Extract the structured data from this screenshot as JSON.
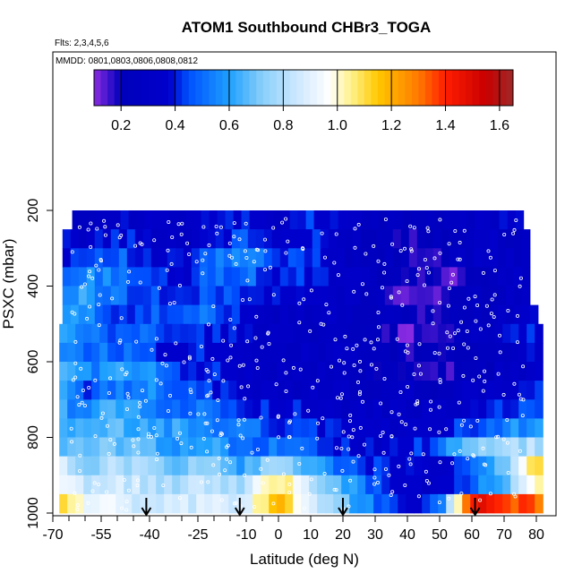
{
  "chart_data": {
    "type": "heatmap",
    "title": "ATOM1 Southbound CHBr3_TOGA",
    "flights_note": "Flts: 2,3,4,5,6",
    "dates_note": "MMDD: 0801,0803,0806,0808,0812",
    "xlabel": "Latitude (deg N)",
    "ylabel": "PSXC (mbar)",
    "xlim": [
      -70,
      80
    ],
    "ylim": [
      1000,
      100
    ],
    "x_ticks": [
      -70,
      -55,
      -40,
      -25,
      -10,
      0,
      10,
      20,
      30,
      40,
      50,
      60,
      70,
      80
    ],
    "x_tick_labels": [
      "-70",
      "-55",
      "-40",
      "-25",
      "-10",
      "0",
      "10",
      "20",
      "30",
      "40",
      "50",
      "60",
      "70",
      "80"
    ],
    "x_minor_ticks": [
      -65,
      -60,
      -50,
      -45,
      -35,
      -30,
      -20,
      -15,
      -5
    ],
    "y_ticks": [
      200,
      400,
      600,
      800,
      1000
    ],
    "y_tick_labels": [
      "200",
      "400",
      "600",
      "800",
      "1000"
    ],
    "colorbar": {
      "range": [
        0.1,
        1.65
      ],
      "ticks": [
        0.2,
        0.4,
        0.6,
        0.8,
        1.0,
        1.2,
        1.4,
        1.6
      ],
      "tick_labels": [
        "0.2",
        "0.4",
        "0.6",
        "0.8",
        "1.0",
        "1.2",
        "1.4",
        "1.6"
      ],
      "stops": [
        {
          "v": 0.1,
          "c": "#8a2be2"
        },
        {
          "v": 0.2,
          "c": "#0000bb"
        },
        {
          "v": 0.38,
          "c": "#0000cd"
        },
        {
          "v": 0.45,
          "c": "#0050ff"
        },
        {
          "v": 0.6,
          "c": "#1ea0ff"
        },
        {
          "v": 0.72,
          "c": "#87cefa"
        },
        {
          "v": 0.85,
          "c": "#cde8ff"
        },
        {
          "v": 0.97,
          "c": "#ffffff"
        },
        {
          "v": 1.05,
          "c": "#fff28c"
        },
        {
          "v": 1.15,
          "c": "#ffc800"
        },
        {
          "v": 1.3,
          "c": "#ff7a00"
        },
        {
          "v": 1.4,
          "c": "#ff1e00"
        },
        {
          "v": 1.55,
          "c": "#c80000"
        },
        {
          "v": 1.65,
          "c": "#a02828"
        }
      ]
    },
    "pressure_levels": [
      225,
      275,
      325,
      375,
      425,
      475,
      525,
      575,
      625,
      675,
      725,
      775,
      825,
      875,
      925,
      975
    ],
    "row_lat_extent": [
      [
        -64,
        75
      ],
      [
        -67,
        76
      ],
      [
        -67,
        77
      ],
      [
        -67,
        77
      ],
      [
        -67,
        78
      ],
      [
        -67,
        79
      ],
      [
        -68,
        80
      ],
      [
        -68,
        80
      ],
      [
        -68,
        80
      ],
      [
        -68,
        80
      ],
      [
        -68,
        80
      ],
      [
        -68,
        80
      ],
      [
        -68,
        80
      ],
      [
        -68,
        80
      ],
      [
        -68,
        80
      ],
      [
        -68,
        80
      ]
    ],
    "lat_nodes": [
      -68,
      -60,
      -50,
      -40,
      -30,
      -20,
      -10,
      0,
      10,
      20,
      30,
      40,
      50,
      60,
      70,
      80
    ],
    "values": [
      [
        0.3,
        0.3,
        0.35,
        0.3,
        0.3,
        0.35,
        0.4,
        0.3,
        0.4,
        0.35,
        0.25,
        0.25,
        0.25,
        0.3,
        0.35,
        0.35
      ],
      [
        0.35,
        0.35,
        0.4,
        0.35,
        0.3,
        0.4,
        0.45,
        0.35,
        0.4,
        0.3,
        0.25,
        0.2,
        0.25,
        0.3,
        0.3,
        0.3
      ],
      [
        0.4,
        0.45,
        0.5,
        0.35,
        0.35,
        0.5,
        0.55,
        0.4,
        0.45,
        0.3,
        0.25,
        0.2,
        0.2,
        0.3,
        0.3,
        0.3
      ],
      [
        0.45,
        0.55,
        0.55,
        0.4,
        0.35,
        0.5,
        0.5,
        0.4,
        0.4,
        0.3,
        0.25,
        0.2,
        0.15,
        0.2,
        0.3,
        0.3
      ],
      [
        0.55,
        0.6,
        0.5,
        0.45,
        0.4,
        0.45,
        0.45,
        0.35,
        0.35,
        0.3,
        0.25,
        0.15,
        0.15,
        0.25,
        0.3,
        0.35
      ],
      [
        0.6,
        0.55,
        0.45,
        0.45,
        0.45,
        0.5,
        0.4,
        0.3,
        0.3,
        0.3,
        0.25,
        0.2,
        0.2,
        0.25,
        0.3,
        0.35
      ],
      [
        0.62,
        0.5,
        0.45,
        0.5,
        0.4,
        0.4,
        0.35,
        0.3,
        0.3,
        0.25,
        0.2,
        0.15,
        0.15,
        0.3,
        0.35,
        0.4
      ],
      [
        0.6,
        0.5,
        0.5,
        0.45,
        0.4,
        0.4,
        0.35,
        0.3,
        0.3,
        0.3,
        0.25,
        0.2,
        0.2,
        0.25,
        0.3,
        0.35
      ],
      [
        0.7,
        0.55,
        0.6,
        0.55,
        0.45,
        0.4,
        0.35,
        0.3,
        0.3,
        0.25,
        0.25,
        0.2,
        0.15,
        0.2,
        0.3,
        0.35
      ],
      [
        0.65,
        0.45,
        0.5,
        0.6,
        0.45,
        0.4,
        0.35,
        0.3,
        0.3,
        0.3,
        0.25,
        0.3,
        0.25,
        0.3,
        0.35,
        0.4
      ],
      [
        0.6,
        0.55,
        0.65,
        0.55,
        0.5,
        0.5,
        0.45,
        0.4,
        0.35,
        0.3,
        0.3,
        0.3,
        0.3,
        0.35,
        0.4,
        0.45
      ],
      [
        0.6,
        0.6,
        0.65,
        0.6,
        0.6,
        0.55,
        0.5,
        0.45,
        0.4,
        0.4,
        0.35,
        0.3,
        0.35,
        0.45,
        0.55,
        0.6
      ],
      [
        0.7,
        0.65,
        0.7,
        0.65,
        0.6,
        0.6,
        0.5,
        0.5,
        0.45,
        0.4,
        0.35,
        0.35,
        0.5,
        0.7,
        0.75,
        0.8
      ],
      [
        0.85,
        0.75,
        0.8,
        0.75,
        0.7,
        0.75,
        0.6,
        0.8,
        0.6,
        0.5,
        0.4,
        0.35,
        0.3,
        0.55,
        0.7,
        1.1
      ],
      [
        0.9,
        0.85,
        0.85,
        0.8,
        0.8,
        0.8,
        0.8,
        1.1,
        0.85,
        0.65,
        0.45,
        0.35,
        0.3,
        0.5,
        0.65,
        1.0
      ],
      [
        1.15,
        0.95,
        0.9,
        0.8,
        0.85,
        0.85,
        0.9,
        1.2,
        0.9,
        0.7,
        0.5,
        0.35,
        0.45,
        1.45,
        1.4,
        1.3
      ]
    ],
    "arrow_lats": [
      -41,
      -12,
      20,
      61
    ]
  }
}
